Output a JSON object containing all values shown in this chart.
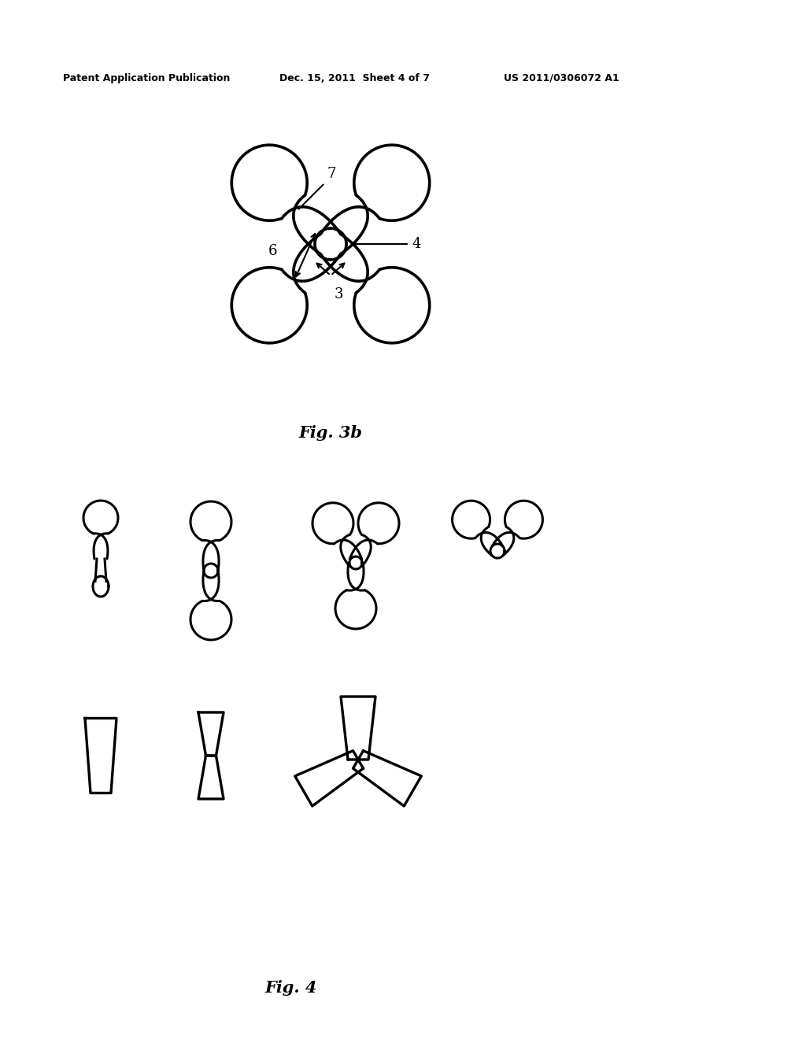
{
  "bg_color": "#ffffff",
  "header_left": "Patent Application Publication",
  "header_mid": "Dec. 15, 2011  Sheet 4 of 7",
  "header_right": "US 2011/0306072 A1",
  "fig3b_label": "Fig. 3b",
  "fig4_label": "Fig. 4",
  "line_color": "#000000",
  "line_width": 2.2
}
